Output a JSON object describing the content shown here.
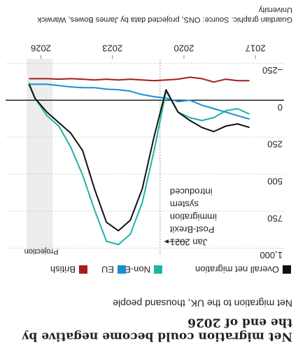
{
  "chart_data": {
    "type": "line",
    "title": [
      "Net migration could become negative by",
      "the end of 2026"
    ],
    "subtitle": "Net migration to the UK, thousand people",
    "source": [
      "Guardian graphic. Source: ONS, projected data by James Bowes, Warwick",
      "University"
    ],
    "x": [
      2017.25,
      2017.75,
      2018.25,
      2018.75,
      2019.25,
      2019.75,
      2020.25,
      2020.75,
      2021.25,
      2021.75,
      2022.25,
      2022.75,
      2023.25,
      2023.75,
      2024.25,
      2024.75,
      2025.25,
      2025.75,
      2026.25,
      2026.5
    ],
    "series": [
      {
        "name": "Overall net migration",
        "color": "#111111",
        "values": [
          184,
          160,
          175,
          212,
          184,
          137,
          80,
          -71,
          245,
          600,
          811,
          882,
          825,
          600,
          340,
          222,
          151,
          80,
          -14,
          -108
        ]
      },
      {
        "name": "Non-EU",
        "color": "#1db3a6",
        "values": [
          94,
          57,
          71,
          118,
          137,
          118,
          80,
          -61,
          340,
          693,
          906,
          976,
          953,
          741,
          505,
          316,
          175,
          104,
          -14,
          -118
        ]
      },
      {
        "name": "EU",
        "color": "#1a8fd0",
        "values": [
          127,
          104,
          80,
          57,
          33,
          0,
          9,
          -14,
          -24,
          -38,
          -61,
          -71,
          -75,
          -85,
          -85,
          -90,
          -99,
          -108,
          -108,
          -108
        ]
      },
      {
        "name": "British",
        "color": "#a61c1c",
        "values": [
          -132,
          -132,
          -142,
          -123,
          -146,
          -156,
          -142,
          -137,
          -132,
          -137,
          -142,
          -137,
          -142,
          -137,
          -142,
          -146,
          -142,
          -146,
          -146,
          -146
        ]
      }
    ],
    "xlim": [
      2016.8,
      2026.6
    ],
    "xticks": [
      2017,
      2020,
      2023,
      2026
    ],
    "ylim": [
      -280,
      1040
    ],
    "yticks": [
      {
        "value": -250,
        "label": "–250"
      },
      0,
      250,
      500,
      750,
      {
        "value": 1000,
        "label": "1,000"
      }
    ],
    "grid": true,
    "event": {
      "x": 2021,
      "label": [
        "Jan 2021",
        "Post-Brexit",
        "immigration",
        "system",
        "introduced"
      ]
    },
    "projection": {
      "start": 2025.5,
      "label": "Projection"
    }
  }
}
